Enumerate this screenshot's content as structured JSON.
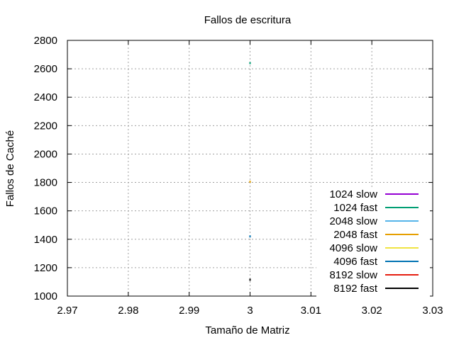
{
  "chart_data": {
    "type": "line",
    "title": "Fallos de escritura",
    "xlabel": "Tamaño de Matriz",
    "ylabel": "Fallos de Caché",
    "xlim": [
      2.97,
      3.03
    ],
    "ylim": [
      1000,
      2800
    ],
    "x_ticks": [
      "2.97",
      "2.98",
      "2.99",
      "3",
      "3.01",
      "3.02",
      "3.03"
    ],
    "y_ticks": [
      "1000",
      "1200",
      "1400",
      "1600",
      "1800",
      "2000",
      "2200",
      "2400",
      "2600",
      "2800"
    ],
    "grid": true,
    "legend_position": "bottom-right",
    "series": [
      {
        "name": "1024 slow",
        "color": "#9400d3",
        "points": []
      },
      {
        "name": "1024 fast",
        "color": "#009e73",
        "points": [
          {
            "x": 3,
            "y": 2640
          }
        ]
      },
      {
        "name": "2048 slow",
        "color": "#56b4e9",
        "points": []
      },
      {
        "name": "2048 fast",
        "color": "#e69f00",
        "points": [
          {
            "x": 3,
            "y": 1805
          }
        ]
      },
      {
        "name": "4096 slow",
        "color": "#f0e442",
        "points": []
      },
      {
        "name": "4096 fast",
        "color": "#0072b2",
        "points": [
          {
            "x": 3,
            "y": 1420
          }
        ]
      },
      {
        "name": "8192 slow",
        "color": "#e51e10",
        "points": []
      },
      {
        "name": "8192 fast",
        "color": "#000000",
        "points": [
          {
            "x": 3,
            "y": 1115
          }
        ]
      }
    ]
  }
}
